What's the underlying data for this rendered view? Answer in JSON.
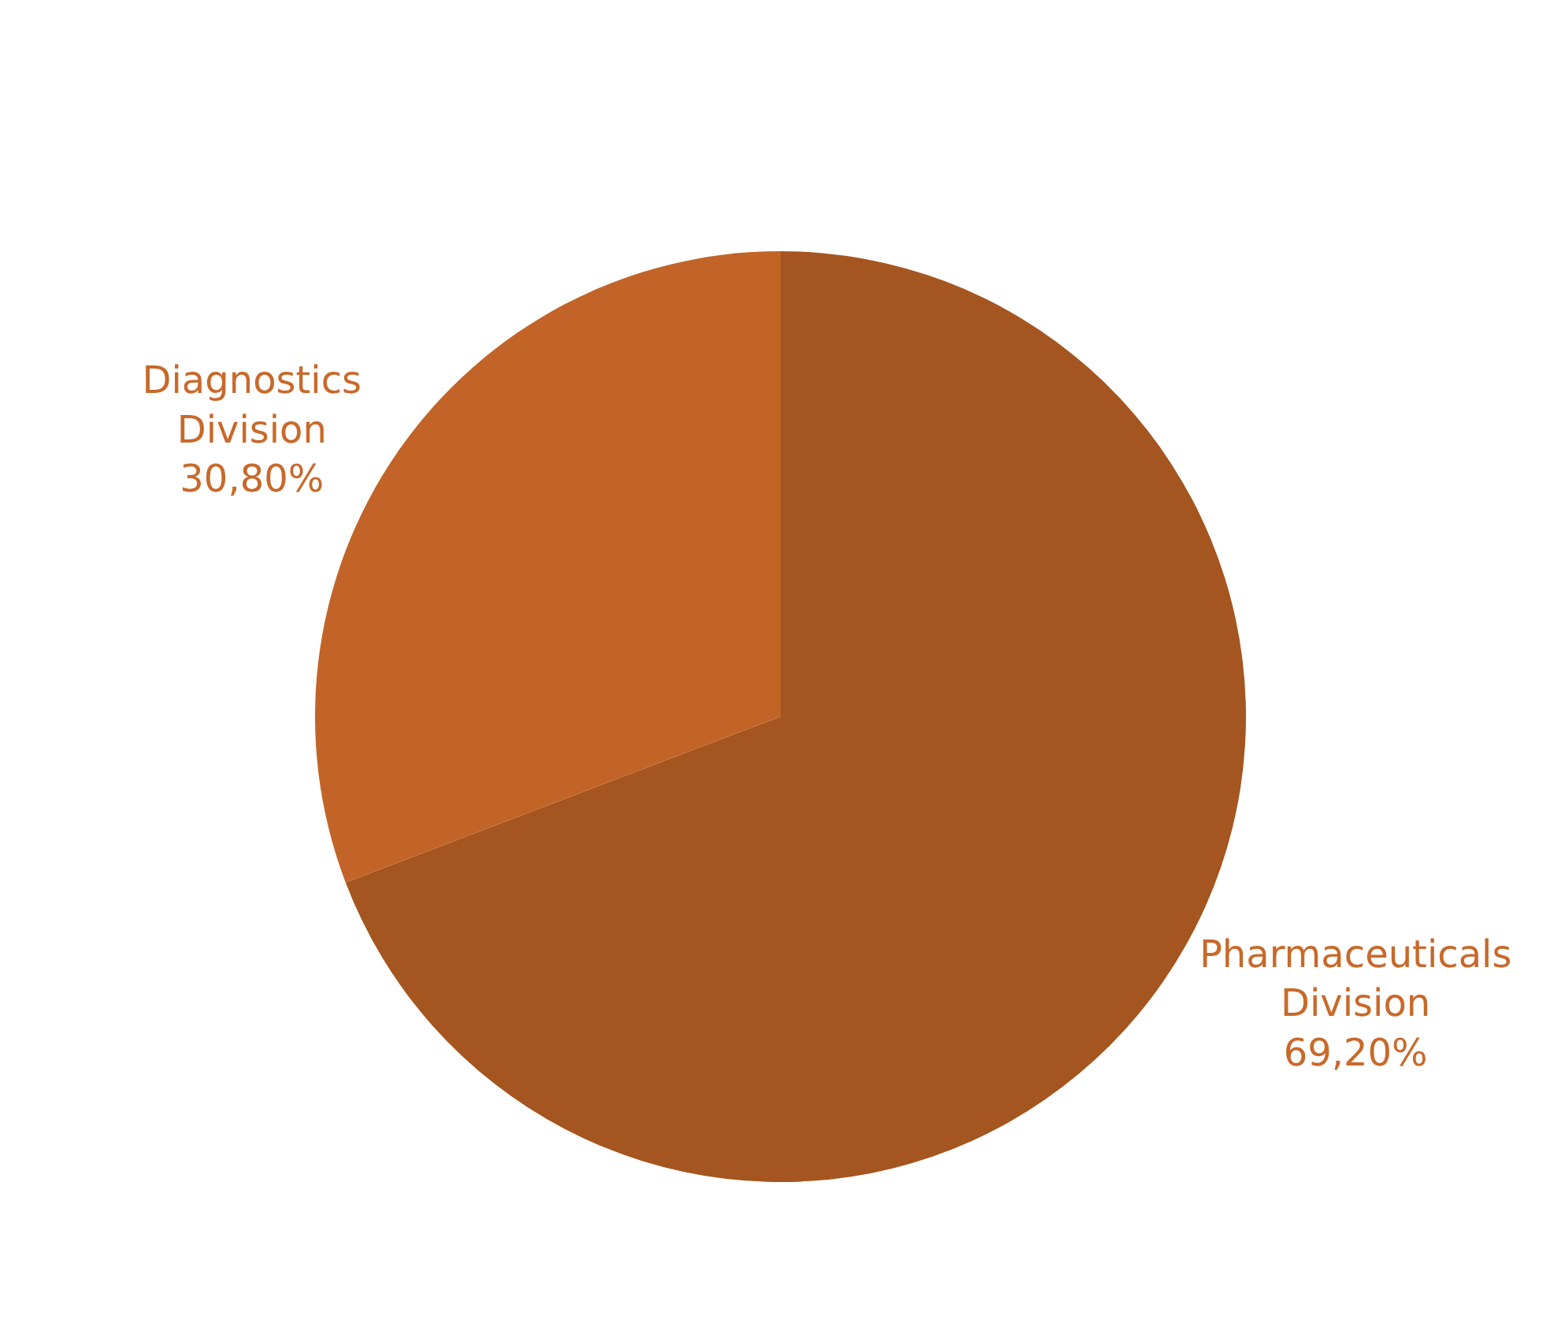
{
  "chart_data": {
    "type": "pie",
    "categories": [
      "Pharmaceuticals Division",
      "Diagnostics Division"
    ],
    "values": [
      69.2,
      30.8
    ],
    "colors": [
      "#a5551f",
      "#c26428"
    ],
    "value_labels": [
      "69,20%",
      "30,80%"
    ],
    "legend": false
  }
}
